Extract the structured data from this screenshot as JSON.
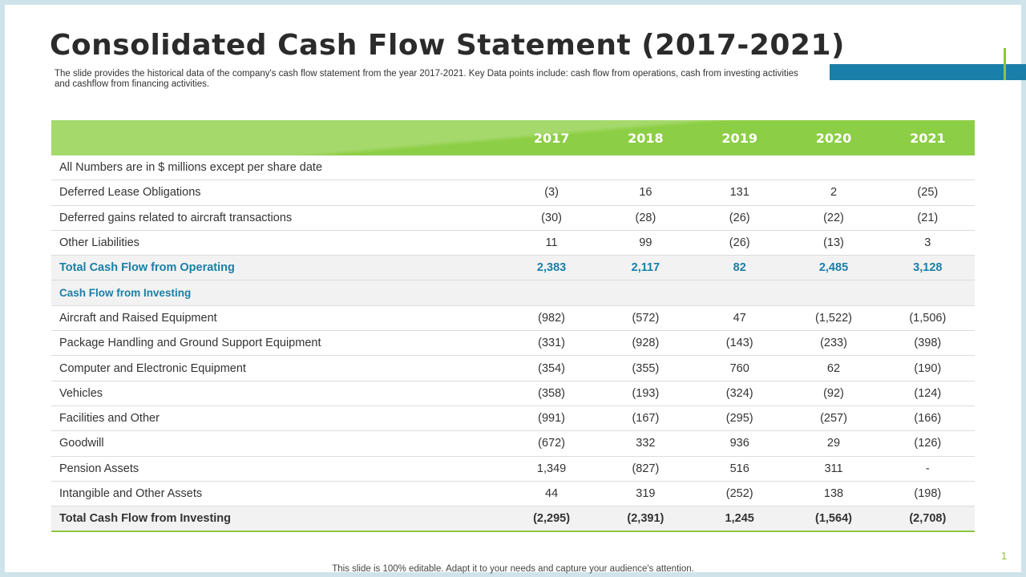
{
  "title": "Consolidated Cash Flow Statement (2017-2021)",
  "subtitle": "The slide provides the historical data of the company's cash flow statement from the year 2017-2021. Key Data points include: cash flow from operations, cash from investing activities and cashflow from financing activities.",
  "table": {
    "years": [
      "2017",
      "2018",
      "2019",
      "2020",
      "2021"
    ],
    "rows": [
      {
        "type": "note",
        "label": "All Numbers are in $ millions except per share date",
        "values": [
          "",
          "",
          "",
          "",
          ""
        ]
      },
      {
        "type": "row",
        "label": "Deferred Lease Obligations",
        "values": [
          "(3)",
          "16",
          "131",
          "2",
          "(25)"
        ]
      },
      {
        "type": "row",
        "label": "Deferred gains related to aircraft transactions",
        "values": [
          "(30)",
          "(28)",
          "(26)",
          "(22)",
          "(21)"
        ]
      },
      {
        "type": "row",
        "label": "Other Liabilities",
        "values": [
          "11",
          "99",
          "(26)",
          "(13)",
          "3"
        ]
      },
      {
        "type": "total-op",
        "label": "Total  Cash Flow from Operating",
        "values": [
          "2,383",
          "2,117",
          "82",
          "2,485",
          "3,128"
        ]
      },
      {
        "type": "section",
        "label": "Cash Flow from Investing",
        "values": [
          "",
          "",
          "",
          "",
          ""
        ]
      },
      {
        "type": "row",
        "label": "Aircraft and Raised Equipment",
        "values": [
          "(982)",
          "(572)",
          "47",
          "(1,522)",
          "(1,506)"
        ]
      },
      {
        "type": "row",
        "label": "Package Handling  and Ground Support Equipment",
        "values": [
          "(331)",
          "(928)",
          "(143)",
          "(233)",
          "(398)"
        ]
      },
      {
        "type": "row",
        "label": "Computer and Electronic Equipment",
        "values": [
          "(354)",
          "(355)",
          "760",
          "62",
          "(190)"
        ]
      },
      {
        "type": "row",
        "label": "Vehicles",
        "values": [
          "(358)",
          "(193)",
          "(324)",
          "(92)",
          "(124)"
        ]
      },
      {
        "type": "row",
        "label": "Facilities and Other",
        "values": [
          "(991)",
          "(167)",
          "(295)",
          "(257)",
          "(166)"
        ]
      },
      {
        "type": "row",
        "label": "Goodwill",
        "values": [
          "(672)",
          "332",
          "936",
          "29",
          "(126)"
        ]
      },
      {
        "type": "row",
        "label": "Pension Assets",
        "values": [
          "1,349",
          "(827)",
          "516",
          "311",
          "-"
        ]
      },
      {
        "type": "row",
        "label": "Intangible and Other Assets",
        "values": [
          "44",
          "319",
          "(252)",
          "138",
          "(198)"
        ]
      },
      {
        "type": "total-inv",
        "label": "Total Cash Flow from Investing",
        "values": [
          "(2,295)",
          "(2,391)",
          "1,245",
          "(1,564)",
          "(2,708)"
        ]
      }
    ]
  },
  "footer": "This slide is 100% editable. Adapt it to your needs and capture your audience's attention.",
  "page_number": "1",
  "colors": {
    "header_green": "#8cce45",
    "accent_blue": "#1a7fa8",
    "accent_green": "#8cc63f"
  }
}
